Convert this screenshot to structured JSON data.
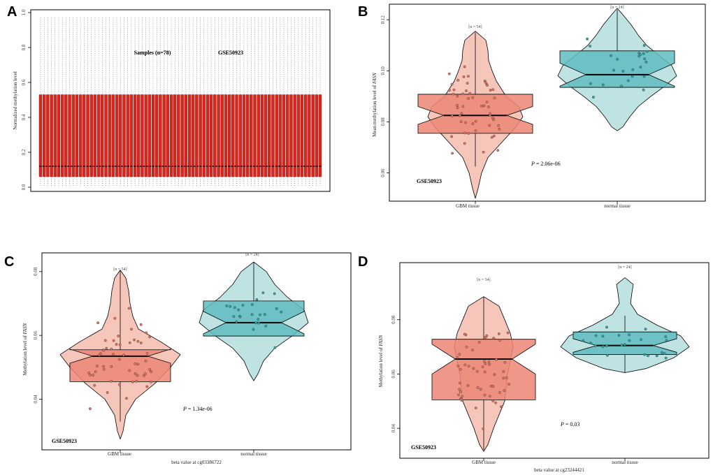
{
  "chart_data": [
    {
      "panel": "A",
      "type": "box",
      "title": "",
      "annotations": [
        "Samples (n=78)",
        "GSE50923"
      ],
      "ylabel": "Normalized methylation level",
      "xlabel": "",
      "yticks": [
        0.0,
        0.2,
        0.4,
        0.6,
        0.8,
        1.0
      ],
      "ylim": [
        0,
        1
      ],
      "n_samples": 78,
      "box": {
        "q1": 0.06,
        "median": 0.12,
        "q3": 0.53,
        "whisker_high": 0.97
      }
    },
    {
      "panel": "B",
      "type": "violin",
      "ylabel_prefix": "Mean methylation level of ",
      "ylabel_gene": "FASN",
      "xlabel": "",
      "ylim": [
        0.05,
        0.125
      ],
      "yticks": [
        0.06,
        0.08,
        0.1,
        0.12
      ],
      "categories": [
        "GBM tissue",
        "normal tissue"
      ],
      "counts": [
        "[n = 54]",
        "[n = 24]"
      ],
      "series": [
        {
          "name": "GBM tissue",
          "q1": 0.0755,
          "median": 0.0825,
          "q3": 0.0908,
          "min": 0.0625,
          "max": 0.115,
          "vmin": 0.05,
          "vmax": 0.1155
        },
        {
          "name": "normal tissue",
          "q1": 0.0935,
          "median": 0.0985,
          "q3": 0.1078,
          "min": 0.0935,
          "max": 0.124,
          "vmin": 0.0765,
          "vmax": 0.1245
        }
      ],
      "p_label": "P",
      "p_value": " = 2.06e-06",
      "dataset": "GSE50923"
    },
    {
      "panel": "C",
      "type": "violin",
      "ylabel_prefix": "Methylation level of ",
      "ylabel_gene": "FASN",
      "xlabel": "beta value at cg03386722",
      "ylim": [
        0.025,
        0.085
      ],
      "yticks": [
        0.04,
        0.06,
        0.08
      ],
      "categories": [
        "GBM tissue",
        "normal tissue"
      ],
      "counts": [
        "[n = 54]",
        "[n = 24]"
      ],
      "series": [
        {
          "name": "GBM tissue",
          "q1": 0.0455,
          "median": 0.0535,
          "q3": 0.0555,
          "min": 0.033,
          "max": 0.0805,
          "vmin": 0.0275,
          "vmax": 0.0805
        },
        {
          "name": "normal tissue",
          "q1": 0.0598,
          "median": 0.064,
          "q3": 0.0708,
          "min": 0.0598,
          "max": 0.083,
          "vmin": 0.0458,
          "vmax": 0.083
        }
      ],
      "p_label": "P",
      "p_value": " = 1.34e-06",
      "dataset": "GSE50923"
    },
    {
      "panel": "D",
      "type": "violin",
      "ylabel_prefix": "Methylation level of ",
      "ylabel_gene": "FASN",
      "xlabel": "beta value at cg23244421",
      "ylim": [
        0.03,
        0.1
      ],
      "yticks": [
        0.04,
        0.06,
        0.08
      ],
      "categories": [
        "GBM tissue",
        "normal tissue"
      ],
      "counts": [
        "[n = 54]",
        "[n = 24]"
      ],
      "series": [
        {
          "name": "GBM tissue",
          "q1": 0.0505,
          "median": 0.0655,
          "q3": 0.0728,
          "min": 0.032,
          "max": 0.0885,
          "vmin": 0.0315,
          "vmax": 0.0885
        },
        {
          "name": "normal tissue",
          "q1": 0.0672,
          "median": 0.0705,
          "q3": 0.0755,
          "min": 0.0605,
          "max": 0.0815,
          "vmin": 0.0605,
          "vmax": 0.0955
        }
      ],
      "p_label": "P",
      "p_value": " = 0.03",
      "dataset": "GSE50923"
    }
  ],
  "panel_labels": [
    "A",
    "B",
    "C",
    "D"
  ],
  "colors": {
    "red_box": "#d9261c",
    "gbm_violin": "#f7c6bb",
    "gbm_box": "#ec8674",
    "normal_violin": "#bfe3e3",
    "normal_box": "#5fbcc0",
    "gbm_dot": "#e2745f",
    "normal_dot": "#2fa3a0"
  }
}
